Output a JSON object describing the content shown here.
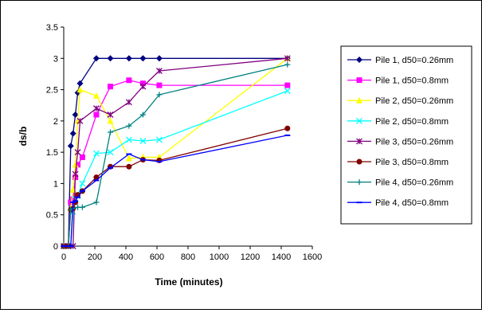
{
  "chart_data": {
    "type": "line",
    "title": "",
    "xlabel": "Time (minutes)",
    "ylabel": "ds/b",
    "xlim": [
      0,
      1600
    ],
    "ylim": [
      0,
      3.5
    ],
    "xticks": [
      0,
      200,
      400,
      600,
      800,
      1000,
      1200,
      1400,
      1600
    ],
    "yticks": [
      0,
      0.5,
      1,
      1.5,
      2,
      2.5,
      3,
      3.5
    ],
    "grid": false,
    "legend_position": "right",
    "series": [
      {
        "name": "Pile 1, d50=0.26mm",
        "color": "#000080",
        "marker": "diamond",
        "points": [
          [
            0,
            0
          ],
          [
            15,
            0
          ],
          [
            30,
            0
          ],
          [
            45,
            1.6
          ],
          [
            60,
            1.8
          ],
          [
            75,
            2.1
          ],
          [
            90,
            2.45
          ],
          [
            105,
            2.6
          ],
          [
            210,
            3.0
          ],
          [
            300,
            3.0
          ],
          [
            420,
            3.0
          ],
          [
            510,
            3.0
          ],
          [
            615,
            3.0
          ],
          [
            1440,
            3.0
          ]
        ]
      },
      {
        "name": "Pile 1, d50=0.8mm",
        "color": "#FF00FF",
        "marker": "square",
        "points": [
          [
            0,
            0
          ],
          [
            30,
            0
          ],
          [
            45,
            0.7
          ],
          [
            60,
            0.75
          ],
          [
            75,
            1.1
          ],
          [
            90,
            1.3
          ],
          [
            120,
            1.42
          ],
          [
            210,
            2.1
          ],
          [
            300,
            2.55
          ],
          [
            420,
            2.65
          ],
          [
            510,
            2.6
          ],
          [
            615,
            2.57
          ],
          [
            1440,
            2.57
          ]
        ]
      },
      {
        "name": "Pile 2, d50=0.26mm",
        "color": "#FFFF00",
        "marker": "triangle",
        "points": [
          [
            0,
            0
          ],
          [
            30,
            0
          ],
          [
            45,
            0.6
          ],
          [
            60,
            0.9
          ],
          [
            75,
            1.3
          ],
          [
            90,
            2.0
          ],
          [
            105,
            2.5
          ],
          [
            210,
            2.4
          ],
          [
            300,
            2.0
          ],
          [
            420,
            1.4
          ],
          [
            510,
            1.42
          ],
          [
            615,
            1.42
          ],
          [
            1440,
            3.0
          ]
        ]
      },
      {
        "name": "Pile 2, d50=0.8mm",
        "color": "#00FFFF",
        "marker": "x",
        "points": [
          [
            0,
            0
          ],
          [
            30,
            0
          ],
          [
            45,
            0
          ],
          [
            60,
            0.55
          ],
          [
            75,
            0.75
          ],
          [
            90,
            0.8
          ],
          [
            120,
            1.0
          ],
          [
            210,
            1.48
          ],
          [
            300,
            1.5
          ],
          [
            420,
            1.7
          ],
          [
            510,
            1.68
          ],
          [
            615,
            1.7
          ],
          [
            1440,
            2.48
          ]
        ]
      },
      {
        "name": "Pile 3, d50=0.26mm",
        "color": "#800080",
        "marker": "star",
        "points": [
          [
            0,
            0
          ],
          [
            30,
            0
          ],
          [
            60,
            0
          ],
          [
            75,
            1.15
          ],
          [
            90,
            1.5
          ],
          [
            105,
            2.0
          ],
          [
            210,
            2.2
          ],
          [
            300,
            2.1
          ],
          [
            420,
            2.3
          ],
          [
            510,
            2.55
          ],
          [
            615,
            2.8
          ],
          [
            1440,
            3.0
          ]
        ]
      },
      {
        "name": "Pile 3, d50=0.8mm",
        "color": "#800000",
        "marker": "circle",
        "points": [
          [
            0,
            0
          ],
          [
            30,
            0
          ],
          [
            45,
            0.58
          ],
          [
            60,
            0.6
          ],
          [
            75,
            0.7
          ],
          [
            90,
            0.82
          ],
          [
            120,
            0.88
          ],
          [
            210,
            1.1
          ],
          [
            300,
            1.27
          ],
          [
            420,
            1.27
          ],
          [
            510,
            1.38
          ],
          [
            615,
            1.37
          ],
          [
            1440,
            1.88
          ]
        ]
      },
      {
        "name": "Pile 4, d50=0.26mm",
        "color": "#008080",
        "marker": "plus",
        "points": [
          [
            0,
            0
          ],
          [
            30,
            0
          ],
          [
            45,
            0.58
          ],
          [
            60,
            0.6
          ],
          [
            90,
            0.62
          ],
          [
            120,
            0.62
          ],
          [
            210,
            0.7
          ],
          [
            300,
            1.82
          ],
          [
            420,
            1.92
          ],
          [
            510,
            2.1
          ],
          [
            615,
            2.42
          ],
          [
            1440,
            2.9
          ]
        ]
      },
      {
        "name": "Pile 4, d50=0.8mm",
        "color": "#0000FF",
        "marker": "dash",
        "points": [
          [
            0,
            0
          ],
          [
            30,
            0
          ],
          [
            45,
            0
          ],
          [
            60,
            0.7
          ],
          [
            75,
            0.72
          ],
          [
            90,
            0.78
          ],
          [
            120,
            0.88
          ],
          [
            210,
            1.05
          ],
          [
            300,
            1.25
          ],
          [
            420,
            1.47
          ],
          [
            510,
            1.38
          ],
          [
            615,
            1.35
          ],
          [
            1440,
            1.77
          ]
        ]
      }
    ]
  }
}
